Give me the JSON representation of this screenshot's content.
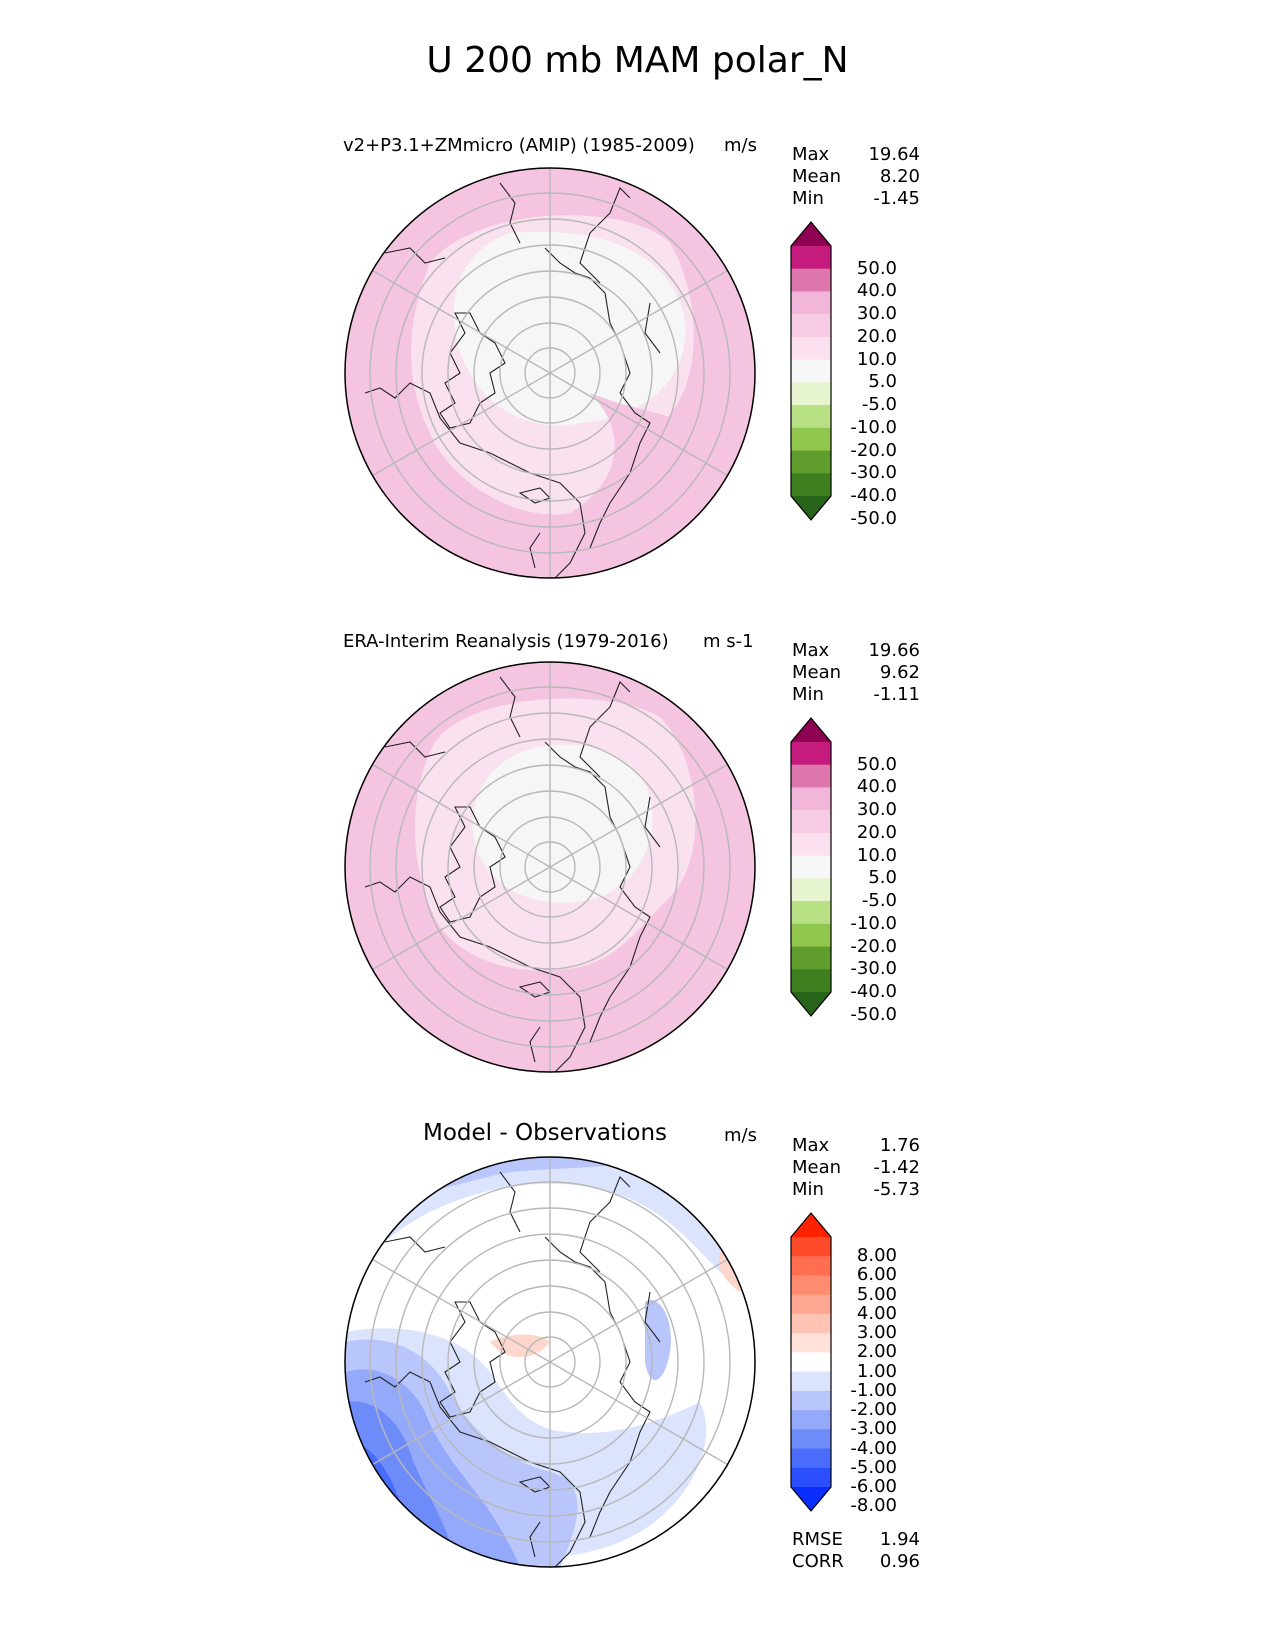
{
  "figure": {
    "title": "U 200 mb MAM polar_N"
  },
  "panels": [
    {
      "title": "v2+P3.1+ZMmicro (AMIP) (1985-2009)",
      "units": "m/s",
      "stats": [
        {
          "label": "Max",
          "value": "19.64"
        },
        {
          "label": "Mean",
          "value": "8.20"
        },
        {
          "label": "Min",
          "value": "-1.45"
        }
      ]
    },
    {
      "title": "ERA-Interim Reanalysis (1979-2016)",
      "units": "m s-1",
      "stats": [
        {
          "label": "Max",
          "value": "19.66"
        },
        {
          "label": "Mean",
          "value": "9.62"
        },
        {
          "label": "Min",
          "value": "-1.11"
        }
      ]
    },
    {
      "title": "Model - Observations",
      "units": "m/s",
      "stats": [
        {
          "label": "Max",
          "value": "1.76"
        },
        {
          "label": "Mean",
          "value": "-1.42"
        },
        {
          "label": "Min",
          "value": "-5.73"
        }
      ],
      "metrics": [
        {
          "label": "RMSE",
          "value": "1.94"
        },
        {
          "label": "CORR",
          "value": "0.96"
        }
      ]
    }
  ],
  "colorbars": {
    "field": {
      "labels": [
        "50.0",
        "40.0",
        "30.0",
        "20.0",
        "10.0",
        "5.0",
        "-5.0",
        "-10.0",
        "-20.0",
        "-30.0",
        "-40.0",
        "-50.0"
      ],
      "colors": [
        "#8e0152",
        "#c51b7d",
        "#de77ae",
        "#f1b6da",
        "#f7cbe4",
        "#fde0ef",
        "#f7f7f7",
        "#e6f5d0",
        "#b8e186",
        "#92c74f",
        "#5f9e2c",
        "#3f7f20",
        "#276419"
      ]
    },
    "diff": {
      "labels": [
        "8.00",
        "6.00",
        "5.00",
        "4.00",
        "3.00",
        "2.00",
        "1.00",
        "-1.00",
        "-2.00",
        "-3.00",
        "-4.00",
        "-5.00",
        "-6.00",
        "-8.00"
      ],
      "colors": [
        "#ff2200",
        "#ff4a2a",
        "#ff6e50",
        "#ff8c70",
        "#ffa792",
        "#ffc3b4",
        "#ffe1d8",
        "#ffffff",
        "#dce3fc",
        "#b9c6fb",
        "#94a9fa",
        "#6e8bfa",
        "#4a6cfa",
        "#2a4ffa",
        "#0a2dff"
      ]
    }
  }
}
